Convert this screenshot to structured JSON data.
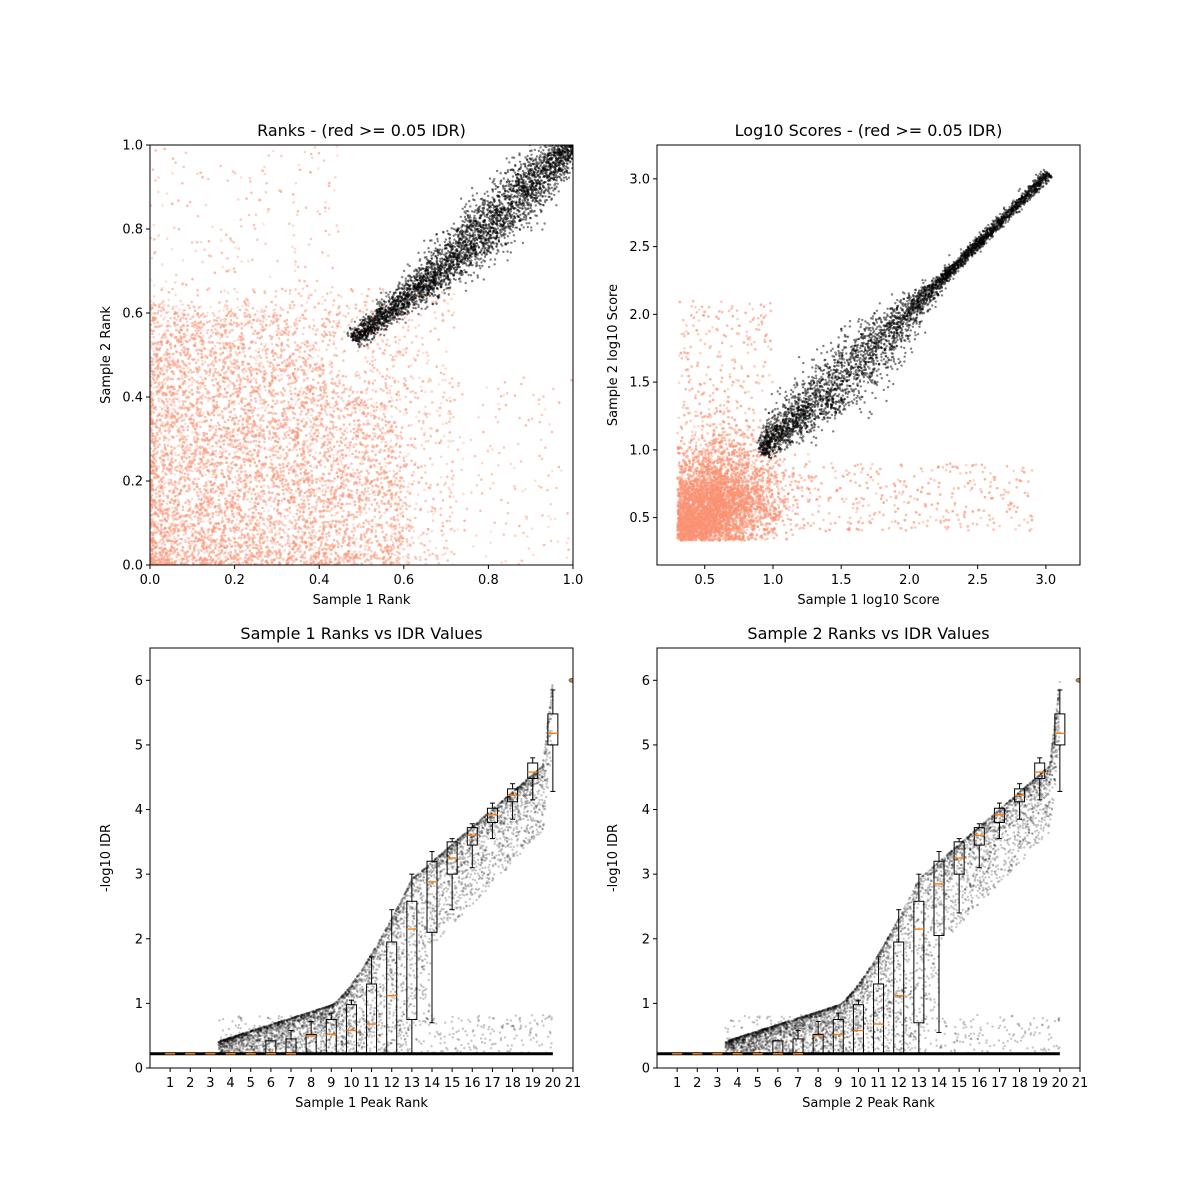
{
  "chart_data": [
    {
      "type": "scatter",
      "title": "Ranks - (red >= 0.05 IDR)",
      "xlabel": "Sample 1 Rank",
      "ylabel": "Sample 2 Rank",
      "xlim": [
        0,
        1
      ],
      "ylim": [
        0,
        1
      ],
      "xticks": [
        "0.0",
        "0.2",
        "0.4",
        "0.6",
        "0.8",
        "1.0"
      ],
      "yticks": [
        "0.0",
        "0.2",
        "0.4",
        "0.6",
        "0.8",
        "1.0"
      ],
      "grid": false,
      "series": [
        {
          "color": "#fa9273",
          "description": "peaks with IDR >= 0.05, scattered over lower-left region up to ~0.7 rank",
          "sample_points": [
            [
              0.05,
              0.05
            ],
            [
              0.1,
              0.3
            ],
            [
              0.2,
              0.15
            ],
            [
              0.3,
              0.4
            ],
            [
              0.4,
              0.2
            ],
            [
              0.5,
              0.55
            ],
            [
              0.6,
              0.6
            ],
            [
              0.15,
              0.6
            ],
            [
              0.7,
              0.1
            ],
            [
              0.2,
              0.9
            ],
            [
              0.9,
              0.3
            ],
            [
              0.55,
              0.7
            ]
          ]
        },
        {
          "color": "#000000",
          "description": "peaks with IDR < 0.05, tight diagonal band from (0.48,0.49) to (1,1)",
          "sample_points": [
            [
              0.48,
              0.49
            ],
            [
              0.55,
              0.58
            ],
            [
              0.6,
              0.66
            ],
            [
              0.7,
              0.72
            ],
            [
              0.8,
              0.8
            ],
            [
              0.9,
              0.9
            ],
            [
              1.0,
              1.0
            ]
          ]
        }
      ]
    },
    {
      "type": "scatter",
      "title": "Log10 Scores - (red >= 0.05 IDR)",
      "xlabel": "Sample 1 log10 Score",
      "ylabel": "Sample 2 log10 Score",
      "xlim": [
        0.15,
        3.25
      ],
      "ylim": [
        0.15,
        3.25
      ],
      "xticks": [
        "0.5",
        "1.0",
        "1.5",
        "2.0",
        "2.5",
        "3.0"
      ],
      "yticks": [
        "0.5",
        "1.0",
        "1.5",
        "2.0",
        "2.5",
        "3.0"
      ],
      "grid": false,
      "series": [
        {
          "color": "#fa9273",
          "description": "low-scoring peaks clustered 0.3-1.3 on both axes",
          "sample_points": [
            [
              0.3,
              0.4
            ],
            [
              0.5,
              0.5
            ],
            [
              0.7,
              0.7
            ],
            [
              0.9,
              0.6
            ],
            [
              1.1,
              0.9
            ],
            [
              0.6,
              1.2
            ]
          ]
        },
        {
          "color": "#000000",
          "description": "reproducible peaks along diagonal from (0.92,0.93) to (3.05,3.05)",
          "sample_points": [
            [
              0.92,
              0.93
            ],
            [
              1.2,
              1.3
            ],
            [
              1.5,
              1.5
            ],
            [
              2.0,
              2.0
            ],
            [
              2.5,
              2.5
            ],
            [
              3.0,
              3.0
            ]
          ]
        }
      ]
    },
    {
      "type": "box",
      "title": "Sample 1 Ranks vs IDR Values",
      "xlabel": "Sample 1 Peak Rank",
      "ylabel": "-log10 IDR",
      "xlim": [
        0,
        21
      ],
      "ylim": [
        0,
        6.5
      ],
      "xticks": [
        "1",
        "2",
        "3",
        "4",
        "5",
        "6",
        "7",
        "8",
        "9",
        "10",
        "11",
        "12",
        "13",
        "14",
        "15",
        "16",
        "17",
        "18",
        "19",
        "20",
        "21"
      ],
      "yticks": [
        "0",
        "1",
        "2",
        "3",
        "4",
        "5",
        "6"
      ],
      "medians": [
        0.22,
        0.22,
        0.22,
        0.22,
        0.22,
        0.22,
        0.22,
        0.5,
        0.52,
        0.58,
        0.68,
        1.12,
        2.15,
        2.88,
        3.25,
        3.6,
        3.92,
        4.22,
        4.58,
        5.18,
        6.0
      ],
      "q1": [
        0.22,
        0.22,
        0.22,
        0.22,
        0.22,
        0.22,
        0.22,
        0.22,
        0.22,
        0.22,
        0.22,
        0.22,
        0.75,
        2.1,
        3.0,
        3.45,
        3.8,
        4.12,
        4.48,
        5.0,
        6.0
      ],
      "q3": [
        0.22,
        0.22,
        0.22,
        0.22,
        0.22,
        0.42,
        0.45,
        0.52,
        0.75,
        0.98,
        1.3,
        1.95,
        2.58,
        3.2,
        3.5,
        3.72,
        4.02,
        4.32,
        4.72,
        5.48,
        6.0
      ],
      "whisker_low": [
        0.22,
        0.22,
        0.22,
        0.22,
        0.22,
        0.22,
        0.22,
        0.22,
        0.22,
        0.22,
        0.22,
        0.22,
        0.22,
        0.7,
        2.45,
        3.1,
        3.55,
        3.85,
        4.15,
        4.28,
        6.0
      ],
      "whisker_high": [
        0.22,
        0.22,
        0.22,
        0.22,
        0.22,
        0.42,
        0.58,
        0.72,
        0.85,
        1.05,
        1.72,
        2.45,
        3.0,
        3.35,
        3.55,
        3.78,
        4.1,
        4.4,
        4.8,
        5.85,
        6.0
      ]
    },
    {
      "type": "box",
      "title": "Sample 2 Ranks vs IDR Values",
      "xlabel": "Sample 2 Peak Rank",
      "ylabel": "-log10 IDR",
      "xlim": [
        0,
        21
      ],
      "ylim": [
        0,
        6.5
      ],
      "xticks": [
        "1",
        "2",
        "3",
        "4",
        "5",
        "6",
        "7",
        "8",
        "9",
        "10",
        "11",
        "12",
        "13",
        "14",
        "15",
        "16",
        "17",
        "18",
        "19",
        "20",
        "21"
      ],
      "yticks": [
        "0",
        "1",
        "2",
        "3",
        "4",
        "5",
        "6"
      ],
      "medians": [
        0.22,
        0.22,
        0.22,
        0.22,
        0.22,
        0.22,
        0.22,
        0.5,
        0.52,
        0.58,
        0.68,
        1.12,
        2.15,
        2.85,
        3.25,
        3.6,
        3.92,
        4.22,
        4.58,
        5.18,
        6.0
      ],
      "q1": [
        0.22,
        0.22,
        0.22,
        0.22,
        0.22,
        0.22,
        0.22,
        0.22,
        0.22,
        0.22,
        0.22,
        0.22,
        0.7,
        2.05,
        3.0,
        3.45,
        3.8,
        4.12,
        4.48,
        5.0,
        6.0
      ],
      "q3": [
        0.22,
        0.22,
        0.22,
        0.22,
        0.22,
        0.42,
        0.45,
        0.52,
        0.75,
        0.98,
        1.3,
        1.95,
        2.58,
        3.2,
        3.5,
        3.72,
        4.02,
        4.32,
        4.72,
        5.48,
        6.0
      ],
      "whisker_low": [
        0.22,
        0.22,
        0.22,
        0.22,
        0.22,
        0.22,
        0.22,
        0.22,
        0.22,
        0.22,
        0.22,
        0.22,
        0.22,
        0.55,
        2.4,
        3.1,
        3.55,
        3.85,
        4.15,
        4.28,
        6.0
      ],
      "whisker_high": [
        0.22,
        0.22,
        0.22,
        0.22,
        0.22,
        0.42,
        0.58,
        0.72,
        0.85,
        1.05,
        1.72,
        2.45,
        3.0,
        3.35,
        3.55,
        3.78,
        4.1,
        4.4,
        4.8,
        5.85,
        6.0
      ]
    }
  ]
}
